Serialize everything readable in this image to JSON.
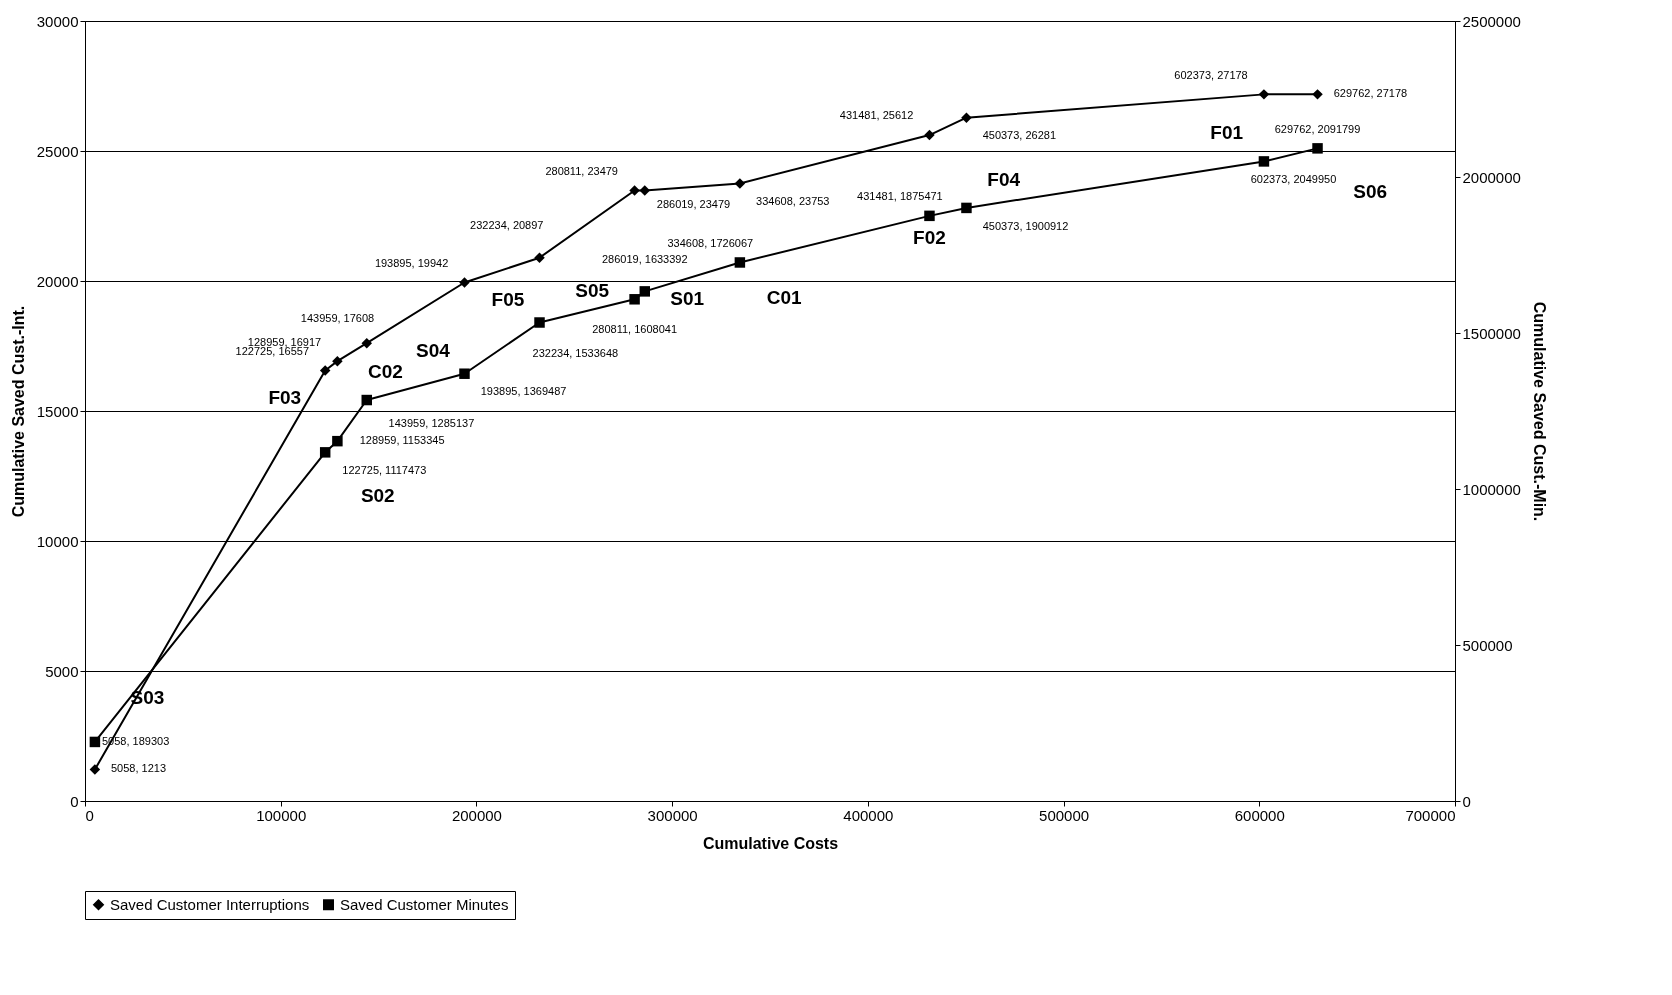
{
  "chart_data": {
    "type": "line",
    "xlabel": "Cumulative Costs",
    "ylabel": "Cumulative Saved Cust.-Int.",
    "y2label": "Cumulative Saved Cust.-Min.",
    "xlim": [
      0,
      700000
    ],
    "xticks": [
      0,
      100000,
      200000,
      300000,
      400000,
      500000,
      600000,
      700000
    ],
    "ylim": [
      0,
      30000
    ],
    "yticks": [
      0,
      5000,
      10000,
      15000,
      20000,
      25000,
      30000
    ],
    "y2lim": [
      0,
      2500000
    ],
    "y2ticks": [
      0,
      500000,
      1000000,
      1500000,
      2000000,
      2500000
    ],
    "grid": "y",
    "legend": "bottom",
    "series": [
      {
        "name": "Saved Customer Interruptions",
        "color": "#000000",
        "marker": "diamond",
        "x": [
          5058,
          122725,
          128959,
          143959,
          193895,
          232234,
          280811,
          286019,
          334608,
          431481,
          450373,
          602373,
          629762
        ],
        "values": [
          1213,
          16557,
          16917,
          17608,
          19942,
          20897,
          23479,
          23479,
          23753,
          25612,
          26281,
          27178,
          27178
        ],
        "value_labels": [
          "5058, 1213",
          "122725, 16557",
          "128959, 16917",
          "143959, 17608",
          "193895, 19942",
          "232234, 20897",
          "280811, 23479",
          "286019, 23479",
          "334608, 23753",
          "431481, 25612",
          "450373, 26281",
          "602373, 27178",
          "629762, 27178"
        ]
      },
      {
        "name": "Saved Customer Minutes",
        "color": "#000000",
        "marker": "square",
        "axis": "y2",
        "x": [
          5058,
          122725,
          128959,
          143959,
          193895,
          232234,
          280811,
          286019,
          334608,
          431481,
          450373,
          602373,
          629762
        ],
        "values": [
          189303,
          1117473,
          1153345,
          1285137,
          1369487,
          1533648,
          1608041,
          1633392,
          1726067,
          1875471,
          1900912,
          2049950,
          2091799
        ],
        "value_labels": [
          "5058, 189303",
          "122725, 1117473",
          "128959, 1153345",
          "143959, 1285137",
          "193895, 1369487",
          "232234, 1533648",
          "280811, 1608041",
          "286019, 1633392",
          "334608, 1726067",
          "431481, 1875471",
          "450373, 1900912",
          "602373, 2049950",
          "629762, 2091799"
        ]
      }
    ],
    "annotations": [
      "S03",
      "S02",
      "F03",
      "C02",
      "S04",
      "F05",
      "S01",
      "S05",
      "C01",
      "F02",
      "F04",
      "F01",
      "S06"
    ]
  }
}
